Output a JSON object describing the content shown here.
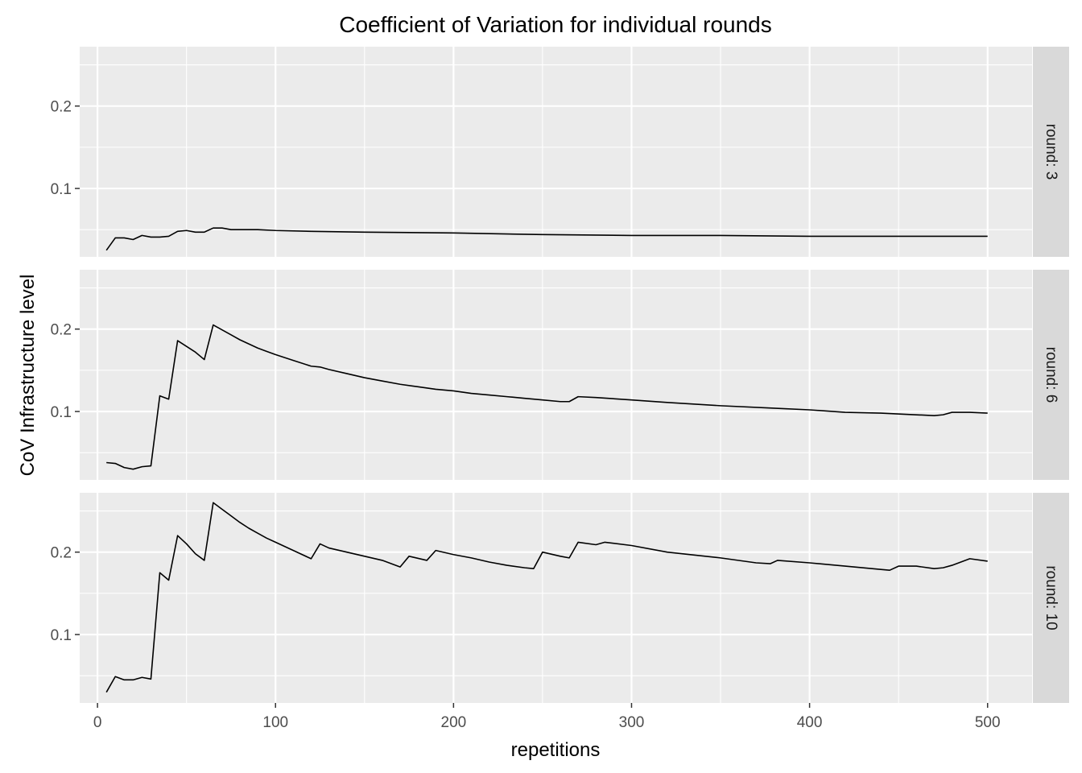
{
  "chart_data": {
    "type": "line",
    "title": "Coefficient of Variation for individual rounds",
    "xlabel": "repetitions",
    "ylabel": "CoV Infrastructure level",
    "xlim": [
      -10,
      525
    ],
    "ylim": [
      0.017,
      0.272
    ],
    "x_ticks": [
      0,
      100,
      200,
      300,
      400,
      500
    ],
    "y_ticks": [
      0.1,
      0.2
    ],
    "grid": true,
    "legend": "none",
    "line_color": "#000000",
    "panel_background": "#ebebeb",
    "strip_background": "#d9d9d9",
    "panels": [
      {
        "label": "round: 3",
        "series": [
          {
            "x": [
              5,
              10,
              15,
              20,
              25,
              30,
              35,
              40,
              45,
              50,
              55,
              60,
              65,
              70,
              75,
              80,
              90,
              100,
              120,
              150,
              200,
              250,
              300,
              350,
              400,
              420,
              450,
              480,
              500
            ],
            "y": [
              0.025,
              0.04,
              0.04,
              0.038,
              0.043,
              0.041,
              0.041,
              0.042,
              0.048,
              0.049,
              0.047,
              0.047,
              0.052,
              0.052,
              0.05,
              0.05,
              0.05,
              0.049,
              0.048,
              0.047,
              0.046,
              0.044,
              0.043,
              0.043,
              0.042,
              0.042,
              0.042,
              0.042,
              0.042
            ]
          }
        ]
      },
      {
        "label": "round: 6",
        "series": [
          {
            "x": [
              5,
              10,
              15,
              20,
              25,
              30,
              35,
              40,
              45,
              55,
              60,
              65,
              70,
              75,
              80,
              85,
              90,
              95,
              100,
              110,
              120,
              125,
              130,
              140,
              150,
              160,
              170,
              180,
              190,
              200,
              210,
              220,
              230,
              240,
              250,
              260,
              265,
              270,
              280,
              300,
              320,
              350,
              380,
              400,
              420,
              440,
              460,
              470,
              475,
              480,
              490,
              500
            ],
            "y": [
              0.038,
              0.037,
              0.032,
              0.03,
              0.033,
              0.034,
              0.119,
              0.115,
              0.186,
              0.172,
              0.163,
              0.205,
              0.199,
              0.193,
              0.187,
              0.182,
              0.177,
              0.173,
              0.169,
              0.162,
              0.155,
              0.154,
              0.151,
              0.146,
              0.141,
              0.137,
              0.133,
              0.13,
              0.127,
              0.125,
              0.122,
              0.12,
              0.118,
              0.116,
              0.114,
              0.112,
              0.112,
              0.118,
              0.117,
              0.114,
              0.111,
              0.107,
              0.104,
              0.102,
              0.099,
              0.098,
              0.096,
              0.095,
              0.096,
              0.099,
              0.099,
              0.098
            ]
          }
        ]
      },
      {
        "label": "round: 10",
        "series": [
          {
            "x": [
              5,
              10,
              15,
              20,
              25,
              30,
              35,
              40,
              45,
              50,
              55,
              60,
              65,
              70,
              75,
              80,
              85,
              90,
              95,
              100,
              110,
              120,
              125,
              130,
              140,
              150,
              160,
              170,
              175,
              185,
              190,
              200,
              210,
              220,
              230,
              240,
              245,
              250,
              260,
              265,
              270,
              280,
              285,
              300,
              320,
              350,
              370,
              378,
              382,
              400,
              420,
              440,
              445,
              450,
              460,
              470,
              475,
              480,
              490,
              500
            ],
            "y": [
              0.03,
              0.049,
              0.045,
              0.045,
              0.048,
              0.046,
              0.175,
              0.166,
              0.22,
              0.21,
              0.198,
              0.19,
              0.26,
              0.252,
              0.244,
              0.236,
              0.229,
              0.223,
              0.217,
              0.212,
              0.202,
              0.192,
              0.21,
              0.205,
              0.2,
              0.195,
              0.19,
              0.182,
              0.195,
              0.19,
              0.202,
              0.197,
              0.193,
              0.188,
              0.184,
              0.181,
              0.18,
              0.2,
              0.195,
              0.193,
              0.212,
              0.209,
              0.212,
              0.208,
              0.2,
              0.193,
              0.187,
              0.186,
              0.19,
              0.187,
              0.183,
              0.179,
              0.178,
              0.183,
              0.183,
              0.18,
              0.181,
              0.184,
              0.192,
              0.189
            ]
          }
        ]
      }
    ]
  }
}
